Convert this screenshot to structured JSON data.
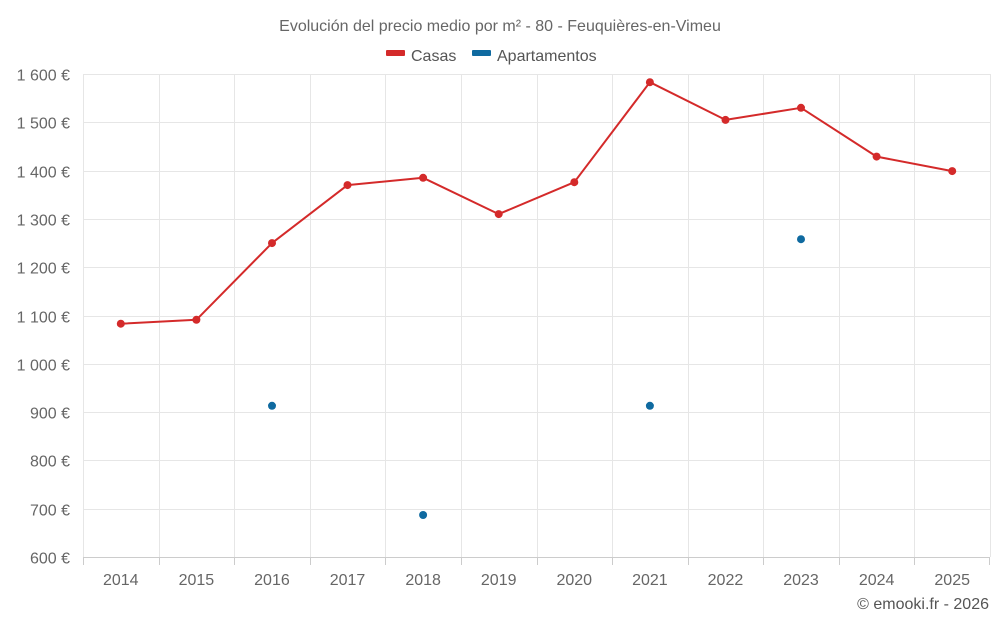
{
  "chart_data": {
    "type": "line",
    "title": "Evolución del precio medio por m² - 80 - Feuquières-en-Vimeu",
    "categories": [
      "2014",
      "2015",
      "2016",
      "2017",
      "2018",
      "2019",
      "2020",
      "2021",
      "2022",
      "2023",
      "2024",
      "2025"
    ],
    "ylim": [
      600,
      1600
    ],
    "yticks": [
      600,
      700,
      800,
      900,
      1000,
      1100,
      1200,
      1300,
      1400,
      1500,
      1600
    ],
    "ytick_labels": [
      "600 €",
      "700 €",
      "800 €",
      "900 €",
      "1 000 €",
      "1 100 €",
      "1 200 €",
      "1 300 €",
      "1 400 €",
      "1 500 €",
      "1 600 €"
    ],
    "xlabel": "",
    "ylabel": "",
    "grid": true,
    "legend_position": "top-center",
    "series": [
      {
        "name": "Casas",
        "color": "#d42a2a",
        "line": true,
        "values": [
          1083,
          1091,
          1250,
          1370,
          1385,
          1310,
          1376,
          1583,
          1505,
          1530,
          1429,
          1399
        ]
      },
      {
        "name": "Apartamentos",
        "color": "#0f6aa0",
        "line": false,
        "values": [
          null,
          null,
          913,
          null,
          687,
          null,
          null,
          913,
          null,
          1258,
          null,
          null
        ]
      }
    ]
  },
  "credit": "© emooki.fr - 2026"
}
